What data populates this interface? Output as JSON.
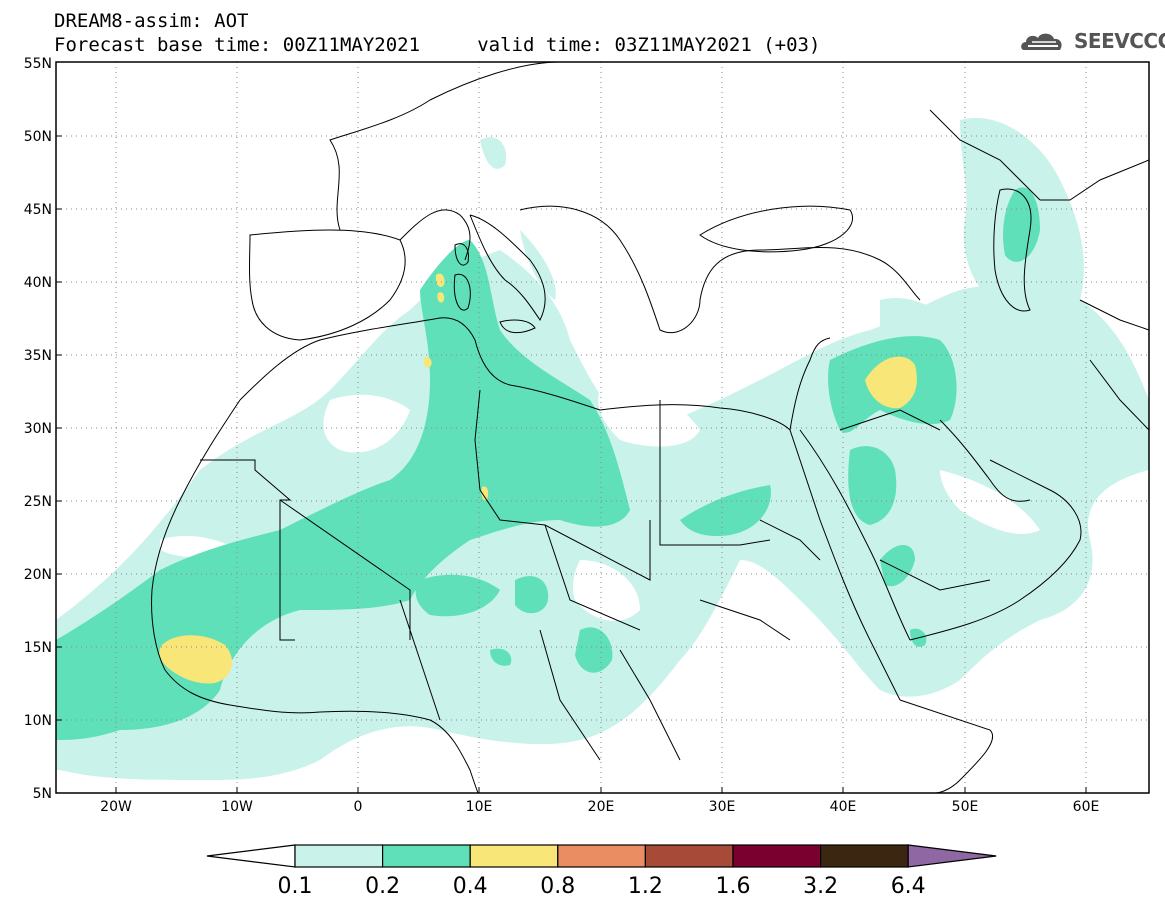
{
  "header": {
    "line1": "DREAM8-assim: AOT",
    "line2": "Forecast base time: 00Z11MAY2021     valid time: 03Z11MAY2021 (+03)",
    "logo_text": "SEEVCCC"
  },
  "map": {
    "lat_labels": [
      "55N",
      "50N",
      "45N",
      "40N",
      "35N",
      "30N",
      "25N",
      "20N",
      "15N",
      "10N",
      "5N"
    ],
    "lon_labels": [
      "20W",
      "10W",
      "0",
      "10E",
      "20E",
      "30E",
      "40E",
      "50E",
      "60E"
    ],
    "lat_range": [
      5,
      55
    ],
    "lon_range": [
      -25,
      65
    ]
  },
  "colorbar": {
    "labels": [
      "0.1",
      "0.2",
      "0.4",
      "0.8",
      "1.2",
      "1.6",
      "3.2",
      "6.4"
    ],
    "colors": [
      "#ffffff",
      "#c9f2ea",
      "#5fe0b8",
      "#f8e678",
      "#ea8d62",
      "#a84a38",
      "#7a0030",
      "#3b2612",
      "#8f68a3"
    ]
  }
}
